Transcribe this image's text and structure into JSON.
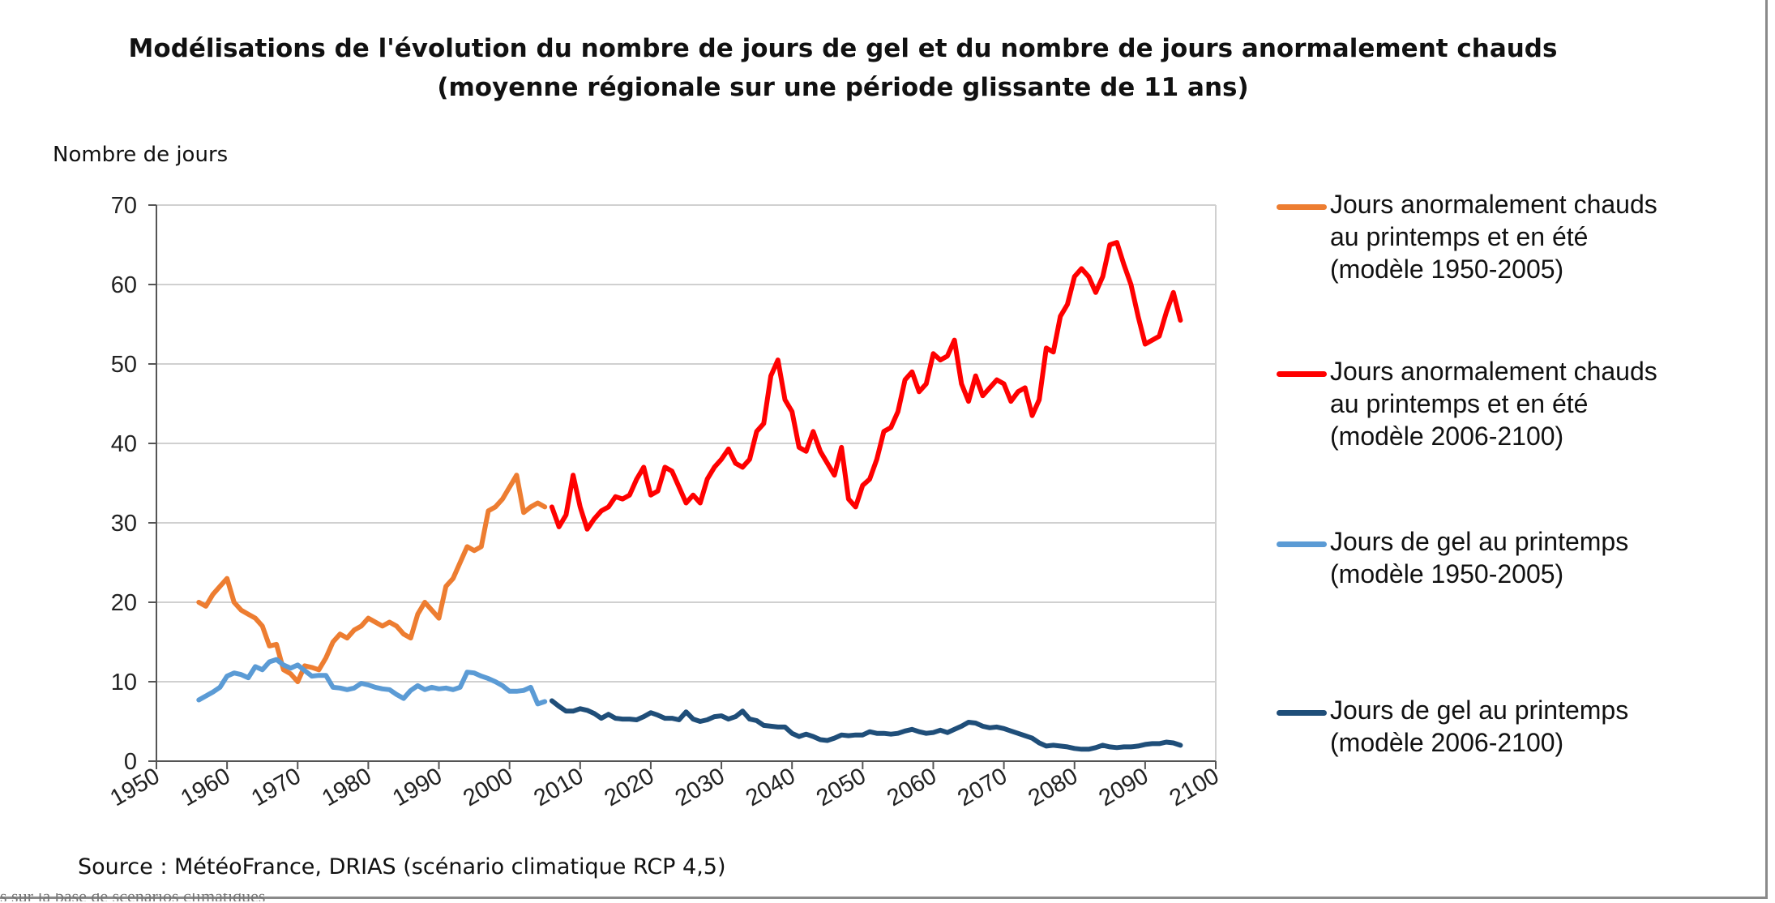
{
  "title_line1": "Modélisations de l'évolution du nombre de jours de gel et du nombre de jours anormalement chauds",
  "title_line2": "(moyenne régionale sur une période glissante de 11 ans)",
  "source": "Source : MétéoFrance, DRIAS (scénario climatique RCP 4,5)",
  "cut_text": "s sur la base de scénarios climatiques",
  "colors": {
    "orange": "#ED7D31",
    "red": "#FF0000",
    "light_blue": "#5B9BD5",
    "dark_blue": "#1F4E79",
    "grid": "#d0d0d0"
  },
  "chart_data": {
    "type": "line",
    "title": "Modélisations de l'évolution du nombre de jours de gel et du nombre de jours anormalement chauds",
    "subtitle": "(moyenne régionale sur une période glissante de 11 ans)",
    "xlabel": "",
    "ylabel": "Nombre de jours",
    "xlim": [
      1950,
      2100
    ],
    "ylim": [
      0,
      70
    ],
    "x_ticks": [
      "1950",
      "1960",
      "1970",
      "1980",
      "1990",
      "2000",
      "2010",
      "2020",
      "2030",
      "2040",
      "2050",
      "2060",
      "2070",
      "2080",
      "2090",
      "2100"
    ],
    "y_ticks": [
      "0",
      "10",
      "20",
      "30",
      "40",
      "50",
      "60",
      "70"
    ],
    "grid": "horizontal",
    "legend_position": "right",
    "series": [
      {
        "name": "Jours anormalement chauds au printemps et en été (modèle 1950-2005)",
        "legend_lines": [
          "Jours anormalement chauds",
          "au printemps et en été",
          "(modèle 1950-2005)"
        ],
        "color": "#ED7D31",
        "x": [
          1956,
          1957,
          1958,
          1959,
          1960,
          1961,
          1962,
          1963,
          1964,
          1965,
          1966,
          1967,
          1968,
          1969,
          1970,
          1971,
          1972,
          1973,
          1974,
          1975,
          1976,
          1977,
          1978,
          1979,
          1980,
          1981,
          1982,
          1983,
          1984,
          1985,
          1986,
          1987,
          1988,
          1989,
          1990,
          1991,
          1992,
          1993,
          1994,
          1995,
          1996,
          1997,
          1998,
          1999,
          2000,
          2001,
          2002,
          2003,
          2004,
          2005
        ],
        "y": [
          20,
          19.5,
          21,
          22,
          23,
          20,
          19,
          18.5,
          18,
          17,
          14.5,
          14.7,
          11.5,
          11,
          10,
          12,
          11.8,
          11.5,
          13,
          15,
          16,
          15.5,
          16.5,
          17,
          18,
          17.5,
          17,
          17.5,
          17,
          16,
          15.5,
          18.5,
          20,
          19,
          18,
          22,
          23,
          25,
          27,
          26.5,
          27,
          31.5,
          32,
          33,
          34.5,
          36,
          31.3,
          32,
          32.5,
          32
        ]
      },
      {
        "name": "Jours anormalement chauds au printemps et en été (modèle 2006-2100)",
        "legend_lines": [
          "Jours anormalement chauds",
          "au printemps et en été",
          "(modèle 2006-2100)"
        ],
        "color": "#FF0000",
        "x": [
          2006,
          2007,
          2008,
          2009,
          2010,
          2011,
          2012,
          2013,
          2014,
          2015,
          2016,
          2017,
          2018,
          2019,
          2020,
          2021,
          2022,
          2023,
          2024,
          2025,
          2026,
          2027,
          2028,
          2029,
          2030,
          2031,
          2032,
          2033,
          2034,
          2035,
          2036,
          2037,
          2038,
          2039,
          2040,
          2041,
          2042,
          2043,
          2044,
          2045,
          2046,
          2047,
          2048,
          2049,
          2050,
          2051,
          2052,
          2053,
          2054,
          2055,
          2056,
          2057,
          2058,
          2059,
          2060,
          2061,
          2062,
          2063,
          2064,
          2065,
          2066,
          2067,
          2068,
          2069,
          2070,
          2071,
          2072,
          2073,
          2074,
          2075,
          2076,
          2077,
          2078,
          2079,
          2080,
          2081,
          2082,
          2083,
          2084,
          2085,
          2086,
          2087,
          2088,
          2089,
          2090,
          2091,
          2092,
          2093,
          2094,
          2095
        ],
        "y": [
          32,
          29.5,
          31,
          36,
          32,
          29.2,
          30.5,
          31.5,
          32,
          33.3,
          33,
          33.5,
          35.5,
          37,
          33.5,
          34,
          37,
          36.5,
          34.5,
          32.5,
          33.5,
          32.5,
          35.5,
          37,
          38,
          39.3,
          37.5,
          37,
          38,
          41.5,
          42.5,
          48.5,
          50.5,
          45.5,
          44,
          39.5,
          39,
          41.5,
          39,
          37.5,
          36,
          39.5,
          33,
          32,
          34.7,
          35.5,
          38,
          41.5,
          42,
          44,
          48,
          49,
          46.5,
          47.5,
          51.3,
          50.5,
          51,
          53,
          47.5,
          45.3,
          48.5,
          46,
          47,
          48,
          47.5,
          45.3,
          46.5,
          47,
          43.5,
          45.5,
          52,
          51.5,
          56,
          57.5,
          61,
          62,
          61,
          59,
          61,
          65,
          65.3,
          62.5,
          60,
          56,
          52.5,
          53,
          53.5,
          56.5,
          59,
          55.5
        ]
      },
      {
        "name": "Jours de gel au printemps (modèle 1950-2005)",
        "legend_lines": [
          "Jours de gel au printemps",
          "(modèle 1950-2005)"
        ],
        "color": "#5B9BD5",
        "x": [
          1956,
          1957,
          1958,
          1959,
          1960,
          1961,
          1962,
          1963,
          1964,
          1965,
          1966,
          1967,
          1968,
          1969,
          1970,
          1971,
          1972,
          1973,
          1974,
          1975,
          1976,
          1977,
          1978,
          1979,
          1980,
          1981,
          1982,
          1983,
          1984,
          1985,
          1986,
          1987,
          1988,
          1989,
          1990,
          1991,
          1992,
          1993,
          1994,
          1995,
          1996,
          1997,
          1998,
          1999,
          2000,
          2001,
          2002,
          2003,
          2004,
          2005
        ],
        "y": [
          7.7,
          8.2,
          8.7,
          9.3,
          10.7,
          11.1,
          10.9,
          10.5,
          11.9,
          11.5,
          12.5,
          12.8,
          12.1,
          11.7,
          12.1,
          11.4,
          10.7,
          10.8,
          10.8,
          9.3,
          9.2,
          9.0,
          9.2,
          9.8,
          9.6,
          9.3,
          9.1,
          9.0,
          8.4,
          7.9,
          8.9,
          9.5,
          9.0,
          9.3,
          9.1,
          9.2,
          9.0,
          9.3,
          11.2,
          11.1,
          10.7,
          10.4,
          10.0,
          9.5,
          8.8,
          8.8,
          8.9,
          9.3,
          7.2,
          7.5
        ]
      },
      {
        "name": "Jours de gel au printemps (modèle 2006-2100)",
        "legend_lines": [
          "Jours de gel au printemps",
          "(modèle 2006-2100)"
        ],
        "color": "#1F4E79",
        "x": [
          2006,
          2007,
          2008,
          2009,
          2010,
          2011,
          2012,
          2013,
          2014,
          2015,
          2016,
          2017,
          2018,
          2019,
          2020,
          2021,
          2022,
          2023,
          2024,
          2025,
          2026,
          2027,
          2028,
          2029,
          2030,
          2031,
          2032,
          2033,
          2034,
          2035,
          2036,
          2037,
          2038,
          2039,
          2040,
          2041,
          2042,
          2043,
          2044,
          2045,
          2046,
          2047,
          2048,
          2049,
          2050,
          2051,
          2052,
          2053,
          2054,
          2055,
          2056,
          2057,
          2058,
          2059,
          2060,
          2061,
          2062,
          2063,
          2064,
          2065,
          2066,
          2067,
          2068,
          2069,
          2070,
          2071,
          2072,
          2073,
          2074,
          2075,
          2076,
          2077,
          2078,
          2079,
          2080,
          2081,
          2082,
          2083,
          2084,
          2085,
          2086,
          2087,
          2088,
          2089,
          2090,
          2091,
          2092,
          2093,
          2094,
          2095
        ],
        "y": [
          7.6,
          6.9,
          6.3,
          6.3,
          6.6,
          6.4,
          6.0,
          5.4,
          5.9,
          5.4,
          5.3,
          5.3,
          5.2,
          5.6,
          6.1,
          5.8,
          5.4,
          5.4,
          5.2,
          6.2,
          5.3,
          5.0,
          5.2,
          5.6,
          5.7,
          5.3,
          5.6,
          6.3,
          5.3,
          5.1,
          4.5,
          4.4,
          4.3,
          4.3,
          3.5,
          3.1,
          3.4,
          3.1,
          2.7,
          2.6,
          2.9,
          3.3,
          3.2,
          3.3,
          3.3,
          3.7,
          3.5,
          3.5,
          3.4,
          3.5,
          3.8,
          4.0,
          3.7,
          3.5,
          3.6,
          3.9,
          3.6,
          4.0,
          4.4,
          4.9,
          4.8,
          4.4,
          4.2,
          4.3,
          4.1,
          3.8,
          3.5,
          3.2,
          2.9,
          2.3,
          1.9,
          2.0,
          1.9,
          1.8,
          1.6,
          1.5,
          1.5,
          1.7,
          2.0,
          1.8,
          1.7,
          1.8,
          1.8,
          1.9,
          2.1,
          2.2,
          2.2,
          2.4,
          2.3,
          2.0
        ]
      }
    ]
  }
}
